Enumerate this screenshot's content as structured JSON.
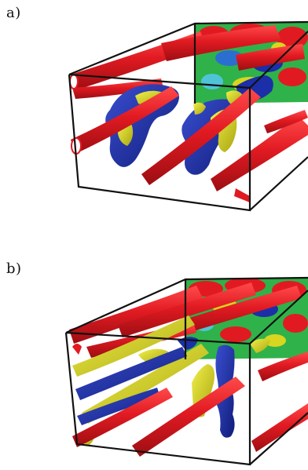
{
  "figure": {
    "panels": [
      {
        "label": "a)"
      },
      {
        "label": "b)"
      }
    ],
    "colors": {
      "red": "#e11a22",
      "blue": "#1c2ea8",
      "yellow": "#d8d61e",
      "green": "#2fb24a",
      "frame": "#111111"
    }
  }
}
